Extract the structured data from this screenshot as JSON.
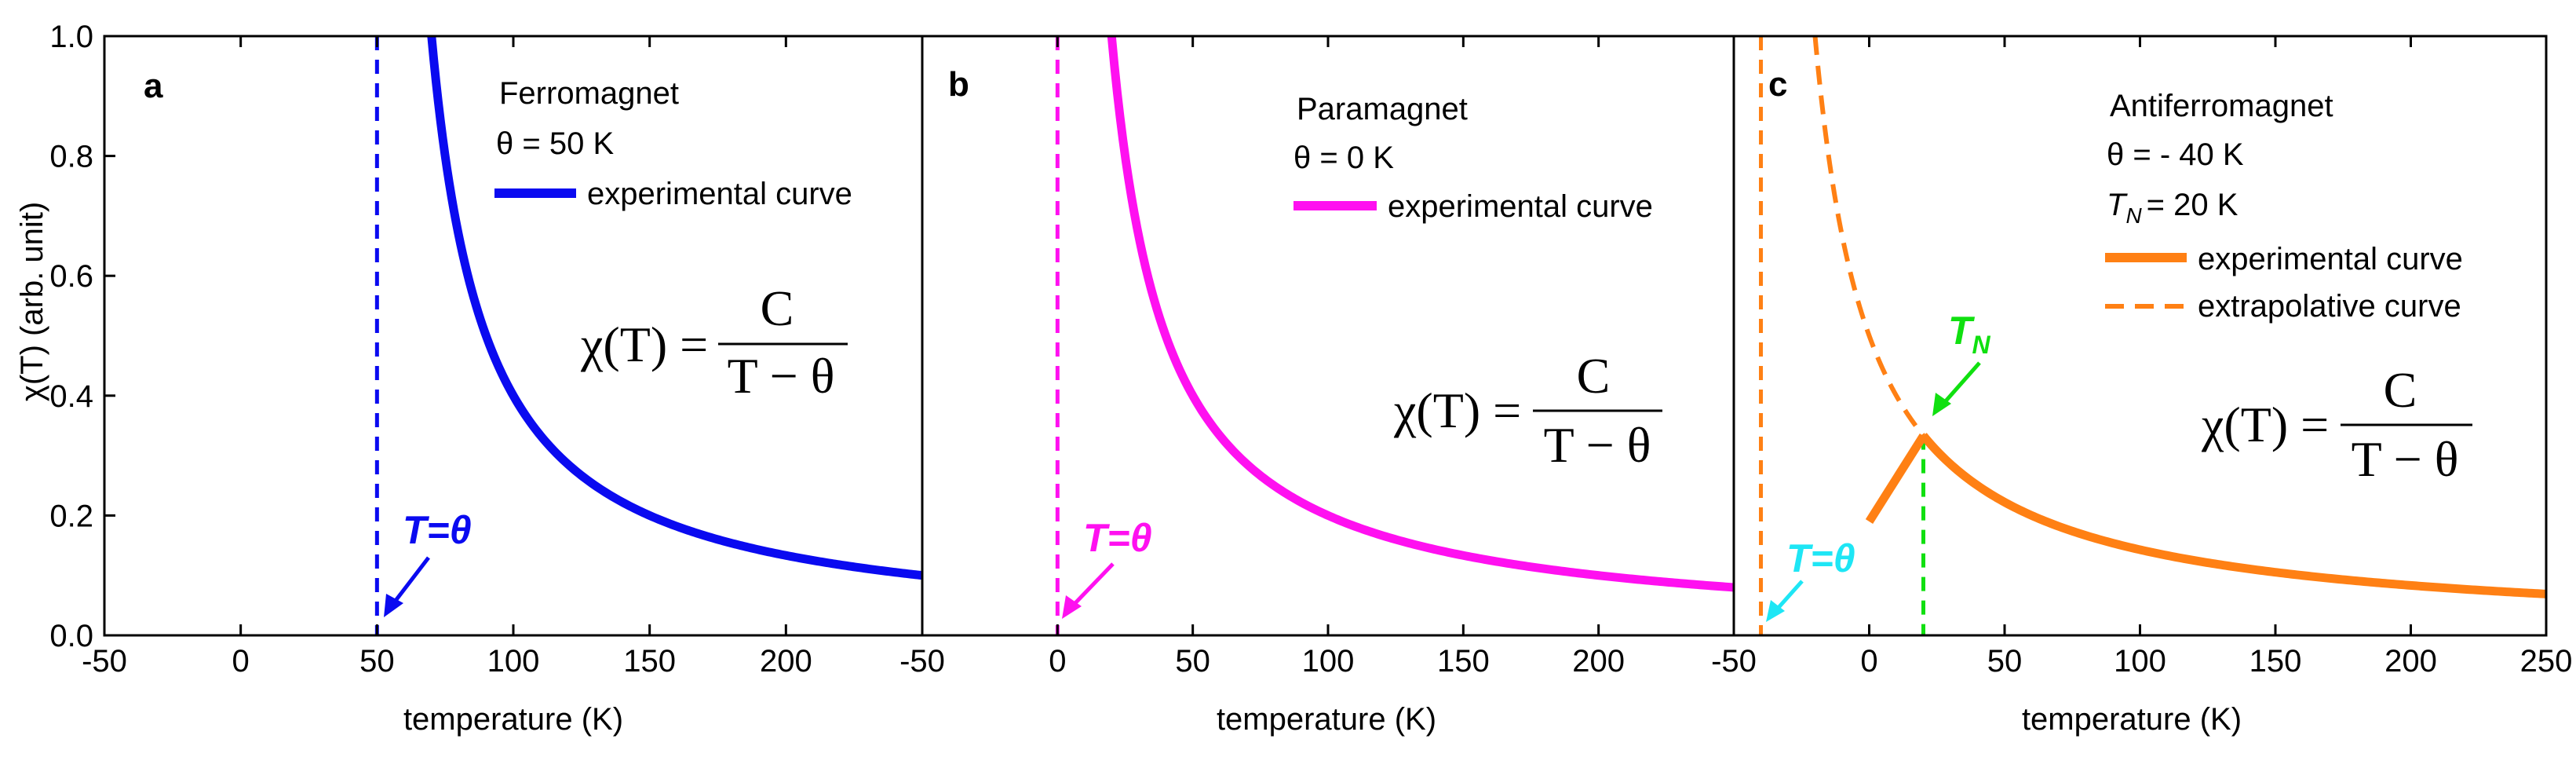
{
  "chart_data": [
    {
      "type": "line",
      "panel_label": "a",
      "title": "Ferromagnet",
      "theta_line": "θ = 50 K",
      "theta_K": 50,
      "legend": [
        "experimental curve"
      ],
      "series": [
        {
          "name": "experimental curve",
          "style": "solid",
          "color": "#0a0af0",
          "x_start": 70,
          "x_end": 250
        }
      ],
      "formula": {
        "lhs": "χ(T) =",
        "numerator": "C",
        "denominator": "T − θ"
      },
      "annotations": [
        {
          "text": "T=θ",
          "color": "#0a0af0",
          "x": 50
        }
      ],
      "vertical_lines": [
        {
          "x": 50,
          "color": "#0a0af0",
          "style": "dashed"
        }
      ],
      "xlabel": "temperature (K)",
      "ylabel": "χ(T) (arb. unit)",
      "xlim": [
        -50,
        250
      ],
      "ylim": [
        0,
        1.0
      ],
      "xticks": [
        -50,
        0,
        50,
        100,
        150,
        200
      ],
      "xtick_labels": [
        "-50",
        "0",
        "50",
        "100",
        "150",
        "200"
      ],
      "yticks": [
        0,
        0.2,
        0.4,
        0.6,
        0.8,
        1.0
      ],
      "ytick_labels": [
        "0.0",
        "0.2",
        "0.4",
        "0.6",
        "0.8",
        "1.0"
      ],
      "curie_constant": 20
    },
    {
      "type": "line",
      "panel_label": "b",
      "title": "Paramagnet",
      "theta_line": "θ = 0 K",
      "theta_K": 0,
      "legend": [
        "experimental curve"
      ],
      "series": [
        {
          "name": "experimental curve",
          "style": "solid",
          "color": "#ff10f0",
          "x_start": 20,
          "x_end": 250
        }
      ],
      "formula": {
        "lhs": "χ(T) =",
        "numerator": "C",
        "denominator": "T − θ"
      },
      "annotations": [
        {
          "text": "T=θ",
          "color": "#ff10f0",
          "x": 0
        }
      ],
      "vertical_lines": [
        {
          "x": 0,
          "color": "#ff10f0",
          "style": "dashed"
        }
      ],
      "xlabel": "temperature (K)",
      "ylabel": "",
      "xlim": [
        -50,
        250
      ],
      "ylim": [
        0,
        1.0
      ],
      "xticks": [
        -50,
        0,
        50,
        100,
        150,
        200
      ],
      "xtick_labels": [
        "-50",
        "0",
        "50",
        "100",
        "150",
        "200"
      ],
      "yticks": [],
      "ytick_labels": [],
      "curie_constant": 20
    },
    {
      "type": "line",
      "panel_label": "c",
      "title": "Antiferromagnet",
      "theta_line": "θ = - 40 K",
      "tn_line": "TN = 20 K",
      "tn_symbol": "T",
      "tn_subscript": "N",
      "tn_value": "= 20 K",
      "theta_K": -40,
      "TN_K": 20,
      "legend": [
        "experimental curve",
        "extrapolative curve"
      ],
      "series": [
        {
          "name": "experimental curve",
          "style": "solid",
          "color": "#ff8014",
          "x_start": 20,
          "x_end": 250
        },
        {
          "name": "experimental curve (below TN)",
          "style": "solid",
          "color": "#ff8014",
          "points": [
            [
              0,
              0.19
            ],
            [
              20,
              0.333
            ]
          ]
        },
        {
          "name": "extrapolative curve",
          "style": "dashed",
          "color": "#ff8014",
          "x_start": -20,
          "x_end": 20
        }
      ],
      "formula": {
        "lhs": "χ(T) =",
        "numerator": "C",
        "denominator": "T − θ"
      },
      "annotations": [
        {
          "text": "T=θ",
          "color": "#1ee6f5",
          "x": -40
        },
        {
          "text": "TN",
          "symbol": "T",
          "subscript": "N",
          "color": "#10e010",
          "x": 20
        }
      ],
      "vertical_lines": [
        {
          "x": -40,
          "color": "#ff8014",
          "style": "dashed"
        },
        {
          "x": 20,
          "color": "#10e010",
          "style": "dashed"
        }
      ],
      "xlabel": "temperature (K)",
      "ylabel": "",
      "xlim": [
        -50,
        250
      ],
      "ylim": [
        0,
        1.0
      ],
      "xticks": [
        -50,
        0,
        50,
        100,
        150,
        200,
        250
      ],
      "xtick_labels": [
        "-50",
        "0",
        "50",
        "100",
        "150",
        "200",
        "250"
      ],
      "yticks": [],
      "ytick_labels": [],
      "curie_constant": 20
    }
  ]
}
